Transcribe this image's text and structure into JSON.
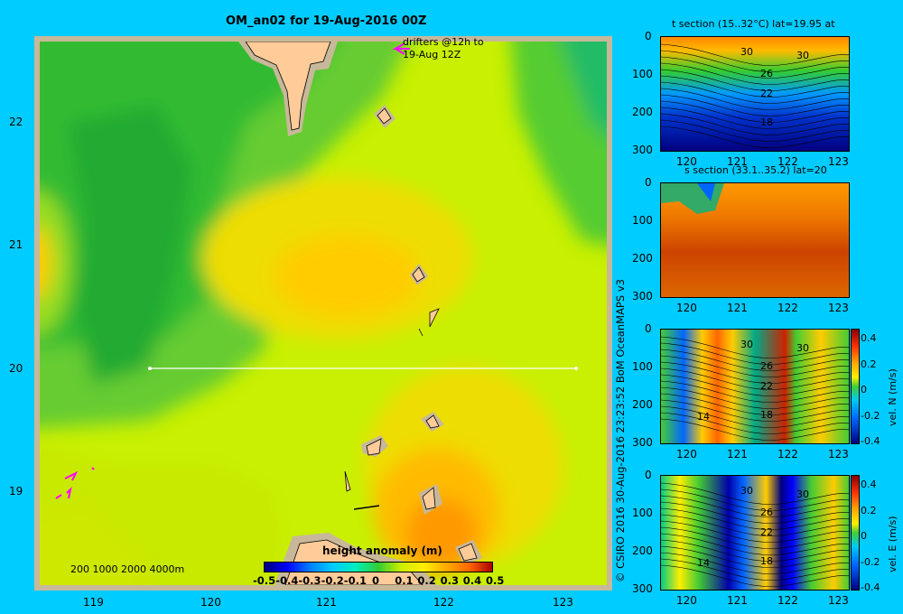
{
  "title": "OM_an02 for 19-Aug-2016 00Z",
  "map": {
    "x_ticks": [
      "119",
      "120",
      "121",
      "122",
      "123"
    ],
    "y_ticks": [
      "22",
      "21",
      "20",
      "19"
    ],
    "drifters_line1": "drifters @12h to",
    "drifters_line2": "19-Aug 12Z",
    "depth_legend": "200  1000  2000  4000m",
    "colorbar_title": "height anomaly (m)",
    "colorbar_ticks": [
      "-0.5",
      "-0.4",
      "-0.3",
      "-0.2",
      "-0.1",
      "0",
      "0.1",
      "0.2",
      "0.3",
      "0.4",
      "0.5"
    ]
  },
  "colors": {
    "background": "#00ccff",
    "land": "#ffcc99",
    "shelf": "#c8b89a",
    "drifter": "#ff00ff",
    "section_line": "#ffffff"
  },
  "credit": "© CSIRO 2016   30-Aug-2016 23:23:52 BoM OceanMAPS v3",
  "panels": [
    {
      "title": "t section (15..32°C) lat=19.95 at",
      "y_ticks": [
        "0",
        "100",
        "200",
        "300"
      ],
      "x_ticks": [
        "120",
        "121",
        "122",
        "123"
      ],
      "contour_labels": [
        "30",
        "30",
        "26",
        "22",
        "18"
      ]
    },
    {
      "title": "s section (33.1..35.2) lat=20",
      "y_ticks": [
        "0",
        "100",
        "200",
        "300"
      ],
      "x_ticks": [
        "120",
        "121",
        "122",
        "123"
      ],
      "contour_labels": []
    },
    {
      "title": "",
      "y_ticks": [
        "0",
        "100",
        "200",
        "300"
      ],
      "x_ticks": [
        "120",
        "121",
        "122",
        "123"
      ],
      "contour_labels": [
        "30",
        "30",
        "26",
        "22",
        "18",
        "14"
      ],
      "colorbar_label": "vel. N (m/s)",
      "colorbar_ticks": [
        "0.4",
        "0.2",
        "0",
        "-0.2",
        "-0.4"
      ]
    },
    {
      "title": "",
      "y_ticks": [
        "0",
        "100",
        "200",
        "300"
      ],
      "x_ticks": [
        "120",
        "121",
        "122",
        "123"
      ],
      "contour_labels": [
        "30",
        "30",
        "26",
        "22",
        "18",
        "14"
      ],
      "colorbar_label": "vel. E (m/s)",
      "colorbar_ticks": [
        "0.4",
        "0.2",
        "0",
        "-0.2",
        "-0.4"
      ]
    }
  ],
  "chart_data": [
    {
      "type": "heatmap",
      "title": "OM_an02 for 19-Aug-2016 00Z",
      "quantity": "height anomaly (m)",
      "xlim": [
        118.5,
        123.5
      ],
      "ylim": [
        18.3,
        22.7
      ],
      "colorbar_range": [
        -0.5,
        0.5
      ],
      "section_line": {
        "lat": 20,
        "lon_from": 119.5,
        "lon_to": 123.2
      }
    },
    {
      "type": "heatmap",
      "title": "t section (15..32°C) lat=19.95 at",
      "xlim": [
        119.5,
        123.2
      ],
      "ylim": [
        300,
        0
      ],
      "value_range": [
        15,
        32
      ],
      "contours": [
        30,
        26,
        22,
        18
      ]
    },
    {
      "type": "heatmap",
      "title": "s section (33.1..35.2) lat=20",
      "xlim": [
        119.5,
        123.2
      ],
      "ylim": [
        300,
        0
      ],
      "value_range": [
        33.1,
        35.2
      ]
    },
    {
      "type": "heatmap",
      "quantity": "vel. N (m/s)",
      "xlim": [
        119.5,
        123.2
      ],
      "ylim": [
        300,
        0
      ],
      "colorbar_range": [
        -0.4,
        0.4
      ]
    },
    {
      "type": "heatmap",
      "quantity": "vel. E (m/s)",
      "xlim": [
        119.5,
        123.2
      ],
      "ylim": [
        300,
        0
      ],
      "colorbar_range": [
        -0.4,
        0.4
      ]
    }
  ]
}
